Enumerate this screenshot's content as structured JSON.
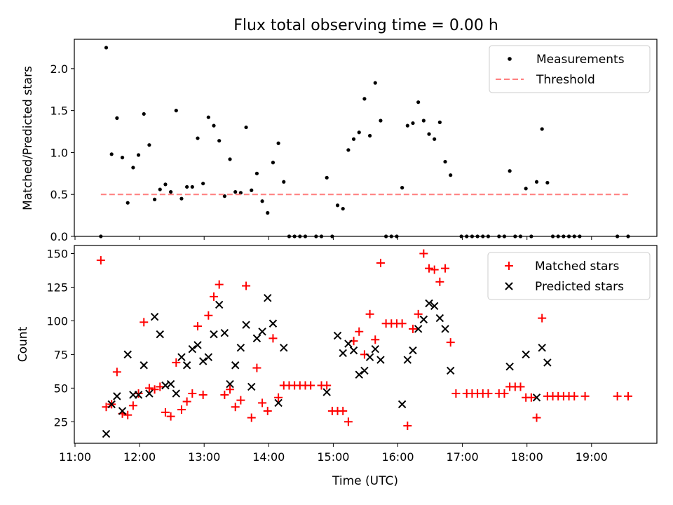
{
  "figure": {
    "title": "Flux total observing time = 0.00 h"
  },
  "colors": {
    "measurement": "#000000",
    "threshold": "#ff7f7f",
    "matched": "#ff0000",
    "predicted": "#000000"
  },
  "chart_data": [
    {
      "type": "scatter",
      "panel": "top",
      "ylabel": "Matched/Predicted stars",
      "xlim": [
        "11:00",
        "20:00"
      ],
      "ylim": [
        0,
        2.35
      ],
      "x_ticks": [
        "11:00",
        "12:00",
        "13:00",
        "14:00",
        "15:00",
        "16:00",
        "17:00",
        "18:00",
        "19:00"
      ],
      "x_tick_labels_shown": false,
      "y_ticks": [
        0.0,
        0.5,
        1.0,
        1.5,
        2.0
      ],
      "y_tick_labels": [
        "0.0",
        "0.5",
        "1.0",
        "1.5",
        "2.0"
      ],
      "grid": false,
      "legend": {
        "position": "top-right",
        "entries": [
          "Measurements",
          "Threshold"
        ]
      },
      "series": [
        {
          "name": "Measurements",
          "marker": "dot",
          "points": [
            [
              "11:24",
              0.0
            ],
            [
              "11:29",
              2.25
            ],
            [
              "11:34",
              0.98
            ],
            [
              "11:39",
              1.41
            ],
            [
              "11:44",
              0.94
            ],
            [
              "11:49",
              0.4
            ],
            [
              "11:54",
              0.82
            ],
            [
              "11:59",
              0.97
            ],
            [
              "12:04",
              1.46
            ],
            [
              "12:09",
              1.09
            ],
            [
              "12:14",
              0.44
            ],
            [
              "12:19",
              0.56
            ],
            [
              "12:24",
              0.62
            ],
            [
              "12:29",
              0.53
            ],
            [
              "12:34",
              1.5
            ],
            [
              "12:39",
              0.45
            ],
            [
              "12:44",
              0.59
            ],
            [
              "12:49",
              0.59
            ],
            [
              "12:54",
              1.17
            ],
            [
              "12:59",
              0.63
            ],
            [
              "13:04",
              1.42
            ],
            [
              "13:09",
              1.32
            ],
            [
              "13:14",
              1.14
            ],
            [
              "13:19",
              0.48
            ],
            [
              "13:24",
              0.92
            ],
            [
              "13:29",
              0.53
            ],
            [
              "13:34",
              0.52
            ],
            [
              "13:39",
              1.3
            ],
            [
              "13:44",
              0.55
            ],
            [
              "13:49",
              0.75
            ],
            [
              "13:54",
              0.42
            ],
            [
              "13:59",
              0.28
            ],
            [
              "14:04",
              0.88
            ],
            [
              "14:09",
              1.11
            ],
            [
              "14:14",
              0.65
            ],
            [
              "14:19",
              0.0
            ],
            [
              "14:24",
              0.0
            ],
            [
              "14:29",
              0.0
            ],
            [
              "14:34",
              0.0
            ],
            [
              "14:44",
              0.0
            ],
            [
              "14:49",
              0.0
            ],
            [
              "14:54",
              0.7
            ],
            [
              "14:59",
              0.0
            ],
            [
              "15:04",
              0.37
            ],
            [
              "15:09",
              0.33
            ],
            [
              "15:14",
              1.03
            ],
            [
              "15:19",
              1.16
            ],
            [
              "15:24",
              1.24
            ],
            [
              "15:29",
              1.64
            ],
            [
              "15:34",
              1.2
            ],
            [
              "15:39",
              1.83
            ],
            [
              "15:44",
              1.38
            ],
            [
              "15:49",
              0.0
            ],
            [
              "15:54",
              0.0
            ],
            [
              "15:59",
              0.0
            ],
            [
              "16:04",
              0.58
            ],
            [
              "16:09",
              1.32
            ],
            [
              "16:14",
              1.35
            ],
            [
              "16:19",
              1.6
            ],
            [
              "16:24",
              1.38
            ],
            [
              "16:29",
              1.22
            ],
            [
              "16:34",
              1.16
            ],
            [
              "16:39",
              1.36
            ],
            [
              "16:44",
              0.89
            ],
            [
              "16:49",
              0.73
            ],
            [
              "16:59",
              0.0
            ],
            [
              "17:04",
              0.0
            ],
            [
              "17:09",
              0.0
            ],
            [
              "17:14",
              0.0
            ],
            [
              "17:19",
              0.0
            ],
            [
              "17:24",
              0.0
            ],
            [
              "17:34",
              0.0
            ],
            [
              "17:39",
              0.0
            ],
            [
              "17:44",
              0.78
            ],
            [
              "17:49",
              0.0
            ],
            [
              "17:54",
              0.0
            ],
            [
              "17:59",
              0.57
            ],
            [
              "18:04",
              0.0
            ],
            [
              "18:09",
              0.65
            ],
            [
              "18:14",
              1.28
            ],
            [
              "18:19",
              0.64
            ],
            [
              "18:24",
              0.0
            ],
            [
              "18:29",
              0.0
            ],
            [
              "18:34",
              0.0
            ],
            [
              "18:39",
              0.0
            ],
            [
              "18:44",
              0.0
            ],
            [
              "18:49",
              0.0
            ],
            [
              "19:24",
              0.0
            ],
            [
              "19:34",
              0.0
            ]
          ]
        },
        {
          "name": "Threshold",
          "marker": "dashed-line",
          "points": [
            [
              "11:24",
              0.5
            ],
            [
              "19:34",
              0.5
            ]
          ]
        }
      ]
    },
    {
      "type": "scatter",
      "panel": "bottom",
      "xlabel": "Time (UTC)",
      "ylabel": "Count",
      "xlim": [
        "11:00",
        "20:00"
      ],
      "ylim": [
        9,
        156
      ],
      "x_ticks": [
        "11:00",
        "12:00",
        "13:00",
        "14:00",
        "15:00",
        "16:00",
        "17:00",
        "18:00",
        "19:00"
      ],
      "x_tick_labels": [
        "11:00",
        "12:00",
        "13:00",
        "14:00",
        "15:00",
        "16:00",
        "17:00",
        "18:00",
        "19:00"
      ],
      "y_ticks": [
        25,
        50,
        75,
        100,
        125,
        150
      ],
      "y_tick_labels": [
        "25",
        "50",
        "75",
        "100",
        "125",
        "150"
      ],
      "grid": false,
      "legend": {
        "position": "top-right",
        "entries": [
          "Matched stars",
          "Predicted stars"
        ]
      },
      "series": [
        {
          "name": "Matched stars",
          "marker": "plus",
          "points": [
            [
              "11:24",
              145
            ],
            [
              "11:29",
              36
            ],
            [
              "11:34",
              38
            ],
            [
              "11:39",
              62
            ],
            [
              "11:44",
              31
            ],
            [
              "11:49",
              30
            ],
            [
              "11:54",
              37
            ],
            [
              "11:59",
              46
            ],
            [
              "12:04",
              99
            ],
            [
              "12:09",
              50
            ],
            [
              "12:14",
              49
            ],
            [
              "12:19",
              51
            ],
            [
              "12:24",
              32
            ],
            [
              "12:29",
              29
            ],
            [
              "12:34",
              69
            ],
            [
              "12:39",
              34
            ],
            [
              "12:44",
              40
            ],
            [
              "12:49",
              46
            ],
            [
              "12:54",
              96
            ],
            [
              "12:59",
              45
            ],
            [
              "13:04",
              104
            ],
            [
              "13:09",
              118
            ],
            [
              "13:14",
              127
            ],
            [
              "13:19",
              45
            ],
            [
              "13:24",
              49
            ],
            [
              "13:29",
              36
            ],
            [
              "13:34",
              41
            ],
            [
              "13:39",
              126
            ],
            [
              "13:44",
              28
            ],
            [
              "13:49",
              65
            ],
            [
              "13:54",
              39
            ],
            [
              "13:59",
              33
            ],
            [
              "14:04",
              87
            ],
            [
              "14:09",
              43
            ],
            [
              "14:14",
              52
            ],
            [
              "14:19",
              52
            ],
            [
              "14:24",
              52
            ],
            [
              "14:29",
              52
            ],
            [
              "14:34",
              52
            ],
            [
              "14:39",
              52
            ],
            [
              "14:49",
              52
            ],
            [
              "14:54",
              52
            ],
            [
              "14:59",
              33
            ],
            [
              "15:04",
              33
            ],
            [
              "15:09",
              33
            ],
            [
              "15:14",
              25
            ],
            [
              "15:19",
              85
            ],
            [
              "15:24",
              92
            ],
            [
              "15:29",
              75
            ],
            [
              "15:34",
              105
            ],
            [
              "15:39",
              86
            ],
            [
              "15:44",
              143
            ],
            [
              "15:49",
              98
            ],
            [
              "15:54",
              98
            ],
            [
              "15:59",
              98
            ],
            [
              "16:04",
              98
            ],
            [
              "16:09",
              22
            ],
            [
              "16:14",
              94
            ],
            [
              "16:19",
              105
            ],
            [
              "16:24",
              150
            ],
            [
              "16:29",
              139
            ],
            [
              "16:34",
              138
            ],
            [
              "16:39",
              129
            ],
            [
              "16:44",
              139
            ],
            [
              "16:49",
              84
            ],
            [
              "16:54",
              46
            ],
            [
              "17:04",
              46
            ],
            [
              "17:09",
              46
            ],
            [
              "17:14",
              46
            ],
            [
              "17:19",
              46
            ],
            [
              "17:24",
              46
            ],
            [
              "17:34",
              46
            ],
            [
              "17:39",
              46
            ],
            [
              "17:44",
              51
            ],
            [
              "17:49",
              51
            ],
            [
              "17:54",
              51
            ],
            [
              "17:59",
              43
            ],
            [
              "18:04",
              43
            ],
            [
              "18:09",
              28
            ],
            [
              "18:14",
              102
            ],
            [
              "18:19",
              44
            ],
            [
              "18:24",
              44
            ],
            [
              "18:29",
              44
            ],
            [
              "18:34",
              44
            ],
            [
              "18:39",
              44
            ],
            [
              "18:44",
              44
            ],
            [
              "18:54",
              44
            ],
            [
              "19:24",
              44
            ],
            [
              "19:34",
              44
            ]
          ]
        },
        {
          "name": "Predicted stars",
          "marker": "x",
          "points": [
            [
              "11:29",
              16
            ],
            [
              "11:34",
              38
            ],
            [
              "11:39",
              44
            ],
            [
              "11:44",
              33
            ],
            [
              "11:49",
              75
            ],
            [
              "11:54",
              45
            ],
            [
              "11:59",
              45
            ],
            [
              "12:04",
              67
            ],
            [
              "12:09",
              46
            ],
            [
              "12:14",
              103
            ],
            [
              "12:19",
              90
            ],
            [
              "12:24",
              52
            ],
            [
              "12:29",
              53
            ],
            [
              "12:34",
              46
            ],
            [
              "12:39",
              73
            ],
            [
              "12:44",
              67
            ],
            [
              "12:49",
              79
            ],
            [
              "12:54",
              82
            ],
            [
              "12:59",
              70
            ],
            [
              "13:04",
              73
            ],
            [
              "13:09",
              90
            ],
            [
              "13:14",
              112
            ],
            [
              "13:19",
              91
            ],
            [
              "13:24",
              53
            ],
            [
              "13:29",
              67
            ],
            [
              "13:34",
              80
            ],
            [
              "13:39",
              97
            ],
            [
              "13:44",
              51
            ],
            [
              "13:49",
              87
            ],
            [
              "13:54",
              92
            ],
            [
              "13:59",
              117
            ],
            [
              "14:04",
              98
            ],
            [
              "14:09",
              39
            ],
            [
              "14:14",
              80
            ],
            [
              "14:54",
              47
            ],
            [
              "15:04",
              89
            ],
            [
              "15:09",
              76
            ],
            [
              "15:14",
              83
            ],
            [
              "15:19",
              78
            ],
            [
              "15:24",
              60
            ],
            [
              "15:29",
              63
            ],
            [
              "15:34",
              73
            ],
            [
              "15:39",
              79
            ],
            [
              "15:44",
              71
            ],
            [
              "16:04",
              38
            ],
            [
              "16:09",
              71
            ],
            [
              "16:14",
              78
            ],
            [
              "16:19",
              94
            ],
            [
              "16:24",
              101
            ],
            [
              "16:29",
              113
            ],
            [
              "16:34",
              111
            ],
            [
              "16:39",
              102
            ],
            [
              "16:44",
              94
            ],
            [
              "16:49",
              63
            ],
            [
              "17:44",
              66
            ],
            [
              "17:59",
              75
            ],
            [
              "18:09",
              43
            ],
            [
              "18:14",
              80
            ],
            [
              "18:19",
              69
            ]
          ]
        }
      ]
    }
  ]
}
